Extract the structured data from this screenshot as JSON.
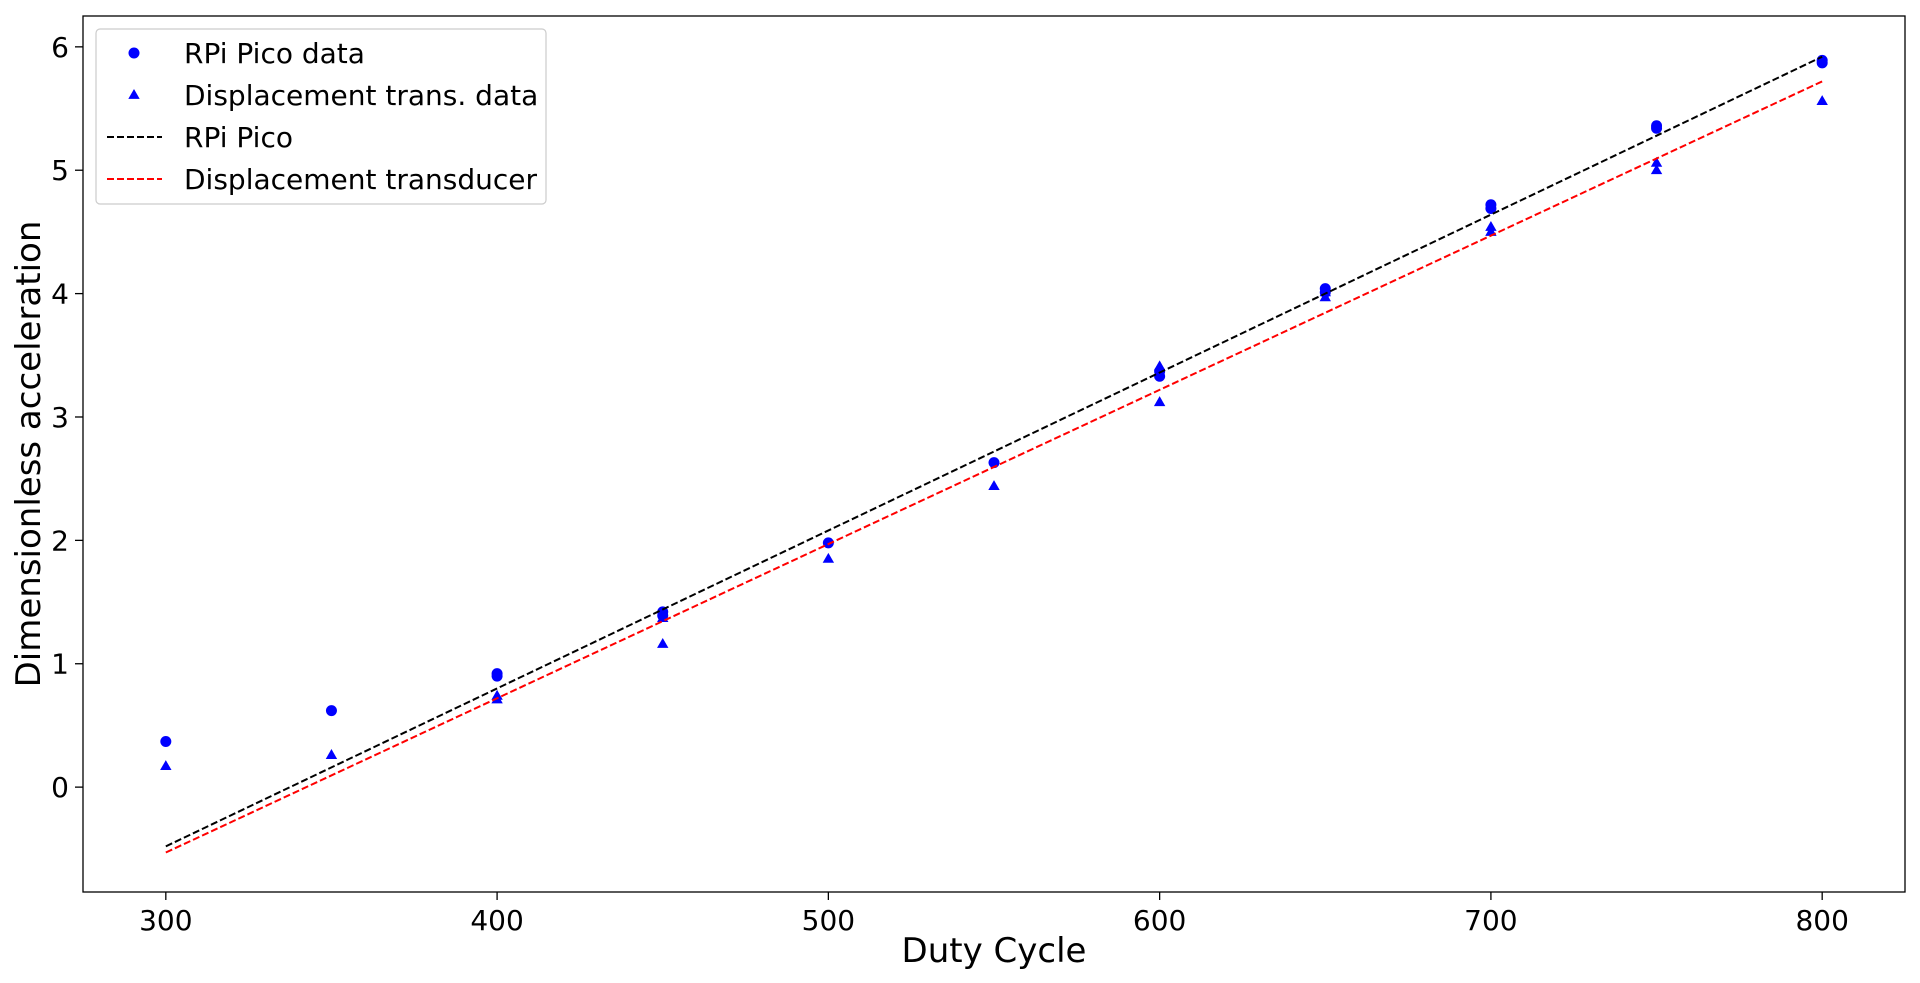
{
  "chart_data": {
    "type": "scatter",
    "title": "",
    "xlabel": "Duty Cycle",
    "ylabel": "Dimensionless acceleration",
    "xlim": [
      275,
      825
    ],
    "ylim": [
      -0.85,
      6.25
    ],
    "xticks": [
      300,
      400,
      500,
      600,
      700,
      800
    ],
    "yticks": [
      0,
      1,
      2,
      3,
      4,
      5,
      6
    ],
    "grid": false,
    "legend_position": "upper-left",
    "series": [
      {
        "name": "RPi Pico data",
        "kind": "scatter",
        "marker": "circle",
        "color": "#0000ff",
        "points": [
          [
            300,
            0.37
          ],
          [
            350,
            0.62
          ],
          [
            400,
            0.92
          ],
          [
            400,
            0.9
          ],
          [
            450,
            1.42
          ],
          [
            450,
            1.39
          ],
          [
            500,
            1.98
          ],
          [
            550,
            2.63
          ],
          [
            600,
            3.37
          ],
          [
            600,
            3.33
          ],
          [
            650,
            4.04
          ],
          [
            650,
            4.01
          ],
          [
            700,
            4.72
          ],
          [
            700,
            4.69
          ],
          [
            750,
            5.36
          ],
          [
            750,
            5.34
          ],
          [
            800,
            5.89
          ],
          [
            800,
            5.87
          ]
        ]
      },
      {
        "name": "Displacement trans. data",
        "kind": "scatter",
        "marker": "triangle",
        "color": "#0000ff",
        "points": [
          [
            300,
            0.17
          ],
          [
            350,
            0.26
          ],
          [
            400,
            0.74
          ],
          [
            400,
            0.71
          ],
          [
            450,
            1.37
          ],
          [
            450,
            1.16
          ],
          [
            500,
            1.85
          ],
          [
            550,
            2.44
          ],
          [
            600,
            3.41
          ],
          [
            600,
            3.12
          ],
          [
            650,
            4.01
          ],
          [
            650,
            3.97
          ],
          [
            700,
            4.54
          ],
          [
            700,
            4.5
          ],
          [
            750,
            5.06
          ],
          [
            750,
            5.0
          ],
          [
            800,
            5.56
          ]
        ]
      },
      {
        "name": "RPi Pico",
        "kind": "line",
        "dash": true,
        "color": "#000000",
        "points": [
          [
            300,
            -0.48
          ],
          [
            800,
            5.92
          ]
        ]
      },
      {
        "name": "Displacement transducer",
        "kind": "line",
        "dash": true,
        "color": "#ff0000",
        "points": [
          [
            300,
            -0.53
          ],
          [
            800,
            5.72
          ]
        ]
      }
    ]
  }
}
